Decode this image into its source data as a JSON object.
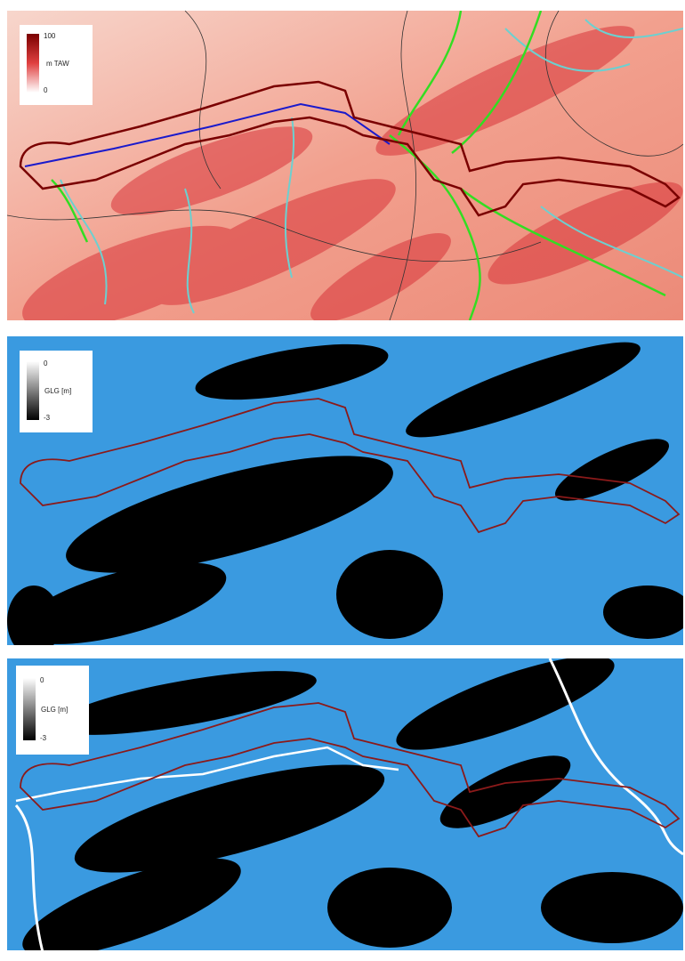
{
  "panels": [
    {
      "legend": {
        "max": 100,
        "label": "m TAW",
        "min": 0
      }
    },
    {
      "legend": {
        "max": 0,
        "label": "GLG [m]",
        "min": -3
      }
    },
    {
      "legend": {
        "max": 0,
        "label": "GLG [m]",
        "min": -3
      }
    }
  ]
}
